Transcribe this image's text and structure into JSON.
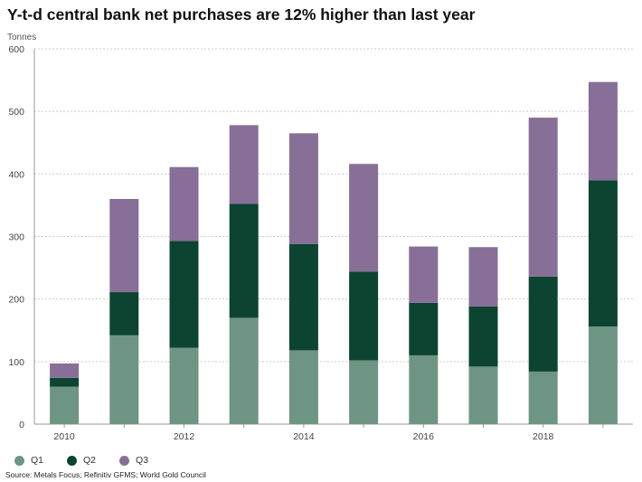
{
  "chart_data": {
    "type": "bar",
    "stacked": true,
    "title": "Y-t-d central bank net purchases are 12% higher than last year",
    "ylabel": "Tonnes",
    "xlabel": "",
    "ylim": [
      0,
      600
    ],
    "yticks": [
      0,
      100,
      200,
      300,
      400,
      500,
      600
    ],
    "categories": [
      "2010",
      "2011",
      "2012",
      "2013",
      "2014",
      "2015",
      "2016",
      "2017",
      "2018",
      "2019"
    ],
    "xtick_labels": [
      "2010",
      "",
      "2012",
      "",
      "2014",
      "",
      "2016",
      "",
      "2018",
      ""
    ],
    "series": [
      {
        "name": "Q1",
        "color": "#6e9484",
        "values": [
          60,
          142,
          122,
          170,
          118,
          102,
          110,
          92,
          84,
          156
        ]
      },
      {
        "name": "Q2",
        "color": "#0c4431",
        "values": [
          14,
          69,
          171,
          182,
          170,
          142,
          84,
          96,
          152,
          234
        ]
      },
      {
        "name": "Q3",
        "color": "#876f97",
        "values": [
          23,
          149,
          118,
          126,
          177,
          172,
          90,
          95,
          254,
          157
        ]
      }
    ],
    "grid": true,
    "legend": "bottom-left",
    "source": "Source: Metals Focus; Refinitiv GFMS; World Gold Council"
  }
}
